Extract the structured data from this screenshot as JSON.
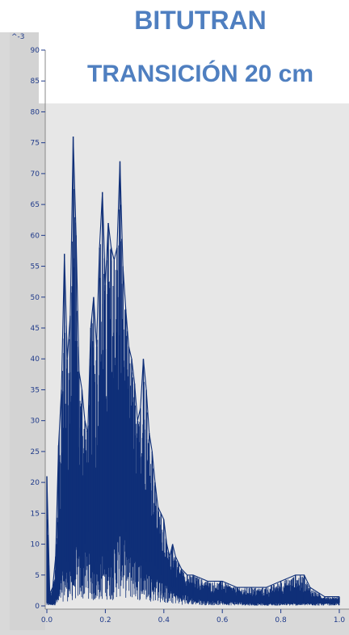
{
  "chart_data": {
    "type": "area",
    "title_lines": [
      "BITUTRAN",
      "TRANSICIÓN 20 cm"
    ],
    "y_multiplier_label": "^-3",
    "xlim": [
      0.0,
      1.0
    ],
    "ylim": [
      0,
      90
    ],
    "x_ticks": [
      0.0,
      0.2,
      0.4,
      0.6,
      0.8,
      1.0
    ],
    "x_tick_labels": [
      "0.0",
      "0.2",
      "0.4",
      "0.6",
      "0.8",
      "1.0"
    ],
    "y_ticks": [
      0,
      5,
      10,
      15,
      20,
      25,
      30,
      35,
      40,
      45,
      50,
      55,
      60,
      65,
      70,
      75,
      80,
      85,
      90
    ],
    "y_tick_labels": [
      "0",
      "5",
      "10",
      "15",
      "20",
      "25",
      "30",
      "35",
      "40",
      "45",
      "50",
      "55",
      "60",
      "65",
      "70",
      "75",
      "80",
      "85",
      "90"
    ],
    "series": [
      {
        "color": "#0f2f78",
        "upper": [
          [
            0.0,
            21
          ],
          [
            0.01,
            2
          ],
          [
            0.02,
            3
          ],
          [
            0.03,
            8
          ],
          [
            0.04,
            26
          ],
          [
            0.05,
            35
          ],
          [
            0.06,
            57
          ],
          [
            0.07,
            40
          ],
          [
            0.08,
            47
          ],
          [
            0.09,
            76
          ],
          [
            0.1,
            60
          ],
          [
            0.11,
            38
          ],
          [
            0.12,
            35
          ],
          [
            0.13,
            30
          ],
          [
            0.14,
            28
          ],
          [
            0.15,
            45
          ],
          [
            0.16,
            50
          ],
          [
            0.17,
            42
          ],
          [
            0.18,
            58
          ],
          [
            0.19,
            67
          ],
          [
            0.2,
            52
          ],
          [
            0.21,
            62
          ],
          [
            0.22,
            58
          ],
          [
            0.23,
            56
          ],
          [
            0.24,
            58
          ],
          [
            0.25,
            72
          ],
          [
            0.26,
            55
          ],
          [
            0.27,
            48
          ],
          [
            0.28,
            42
          ],
          [
            0.29,
            40
          ],
          [
            0.3,
            36
          ],
          [
            0.31,
            30
          ],
          [
            0.32,
            32
          ],
          [
            0.33,
            40
          ],
          [
            0.34,
            35
          ],
          [
            0.35,
            28
          ],
          [
            0.36,
            25
          ],
          [
            0.37,
            20
          ],
          [
            0.38,
            16
          ],
          [
            0.39,
            15
          ],
          [
            0.4,
            14
          ],
          [
            0.41,
            10
          ],
          [
            0.42,
            8
          ],
          [
            0.43,
            10
          ],
          [
            0.44,
            8
          ],
          [
            0.45,
            7
          ],
          [
            0.46,
            6
          ],
          [
            0.48,
            5
          ],
          [
            0.5,
            5
          ],
          [
            0.55,
            4
          ],
          [
            0.6,
            4
          ],
          [
            0.65,
            3
          ],
          [
            0.7,
            3
          ],
          [
            0.75,
            3
          ],
          [
            0.8,
            4
          ],
          [
            0.85,
            5
          ],
          [
            0.88,
            5
          ],
          [
            0.9,
            3
          ],
          [
            0.95,
            1.5
          ],
          [
            1.0,
            1.5
          ]
        ],
        "lower": [
          [
            0.0,
            0.5
          ],
          [
            0.02,
            0.5
          ],
          [
            0.04,
            2
          ],
          [
            0.06,
            8
          ],
          [
            0.08,
            6
          ],
          [
            0.1,
            10
          ],
          [
            0.12,
            8
          ],
          [
            0.14,
            12
          ],
          [
            0.16,
            6
          ],
          [
            0.18,
            8
          ],
          [
            0.2,
            10
          ],
          [
            0.22,
            8
          ],
          [
            0.24,
            12
          ],
          [
            0.26,
            14
          ],
          [
            0.28,
            10
          ],
          [
            0.3,
            9
          ],
          [
            0.32,
            8
          ],
          [
            0.34,
            7
          ],
          [
            0.36,
            7
          ],
          [
            0.38,
            6
          ],
          [
            0.4,
            4
          ],
          [
            0.42,
            3
          ],
          [
            0.44,
            3
          ],
          [
            0.46,
            2
          ],
          [
            0.48,
            2
          ],
          [
            0.5,
            1.5
          ],
          [
            0.55,
            1
          ],
          [
            0.6,
            1
          ],
          [
            0.7,
            0.5
          ],
          [
            0.8,
            0.5
          ],
          [
            0.9,
            0.5
          ],
          [
            1.0,
            0.5
          ]
        ]
      }
    ]
  }
}
